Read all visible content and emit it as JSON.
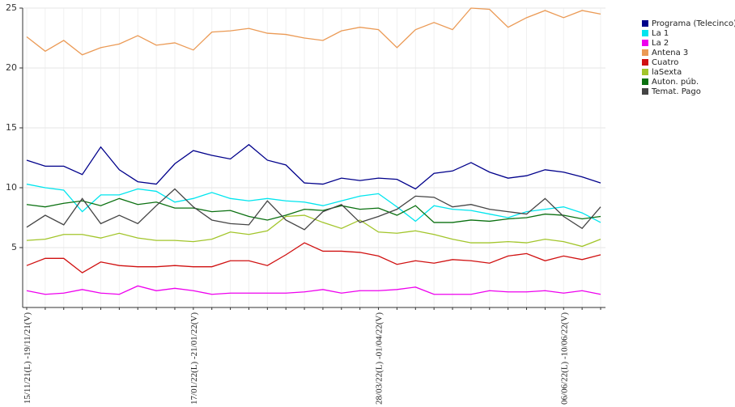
{
  "chart_data": {
    "type": "line",
    "categories": [
      "15/11/21(L) -19/11/21(V)",
      null,
      null,
      null,
      null,
      null,
      null,
      null,
      null,
      "17/01/22(L) -21/01/22(V)",
      null,
      null,
      null,
      null,
      null,
      null,
      null,
      null,
      null,
      "28/03/22(L) -01/04/22(V)",
      null,
      null,
      null,
      null,
      null,
      null,
      null,
      null,
      null,
      "06/06/22(L) -10/06/22(V)",
      null,
      null
    ],
    "ylim": [
      0,
      25
    ],
    "yticks": [
      5,
      10,
      15,
      20,
      25
    ],
    "grid": true,
    "series": [
      {
        "name": "Programa (Telecinco)",
        "color": "#00008b",
        "values": [
          12.3,
          11.8,
          11.8,
          11.1,
          13.4,
          11.5,
          10.5,
          10.3,
          12.0,
          13.1,
          12.7,
          12.4,
          13.6,
          12.3,
          11.9,
          10.4,
          10.3,
          10.8,
          10.6,
          10.8,
          10.7,
          9.9,
          11.2,
          11.4,
          12.1,
          11.3,
          10.8,
          11.0,
          11.5,
          11.3,
          10.9,
          10.4
        ]
      },
      {
        "name": "La 1",
        "color": "#00e5ee",
        "values": [
          10.3,
          10.0,
          9.8,
          8.0,
          9.4,
          9.4,
          9.9,
          9.7,
          8.8,
          9.1,
          9.6,
          9.1,
          8.9,
          9.1,
          8.9,
          8.8,
          8.5,
          8.9,
          9.3,
          9.5,
          8.4,
          7.2,
          8.5,
          8.2,
          8.1,
          7.8,
          7.5,
          8.0,
          8.2,
          8.4,
          7.9,
          7.1
        ]
      },
      {
        "name": "La 2",
        "color": "#ee00ee",
        "values": [
          1.4,
          1.1,
          1.2,
          1.5,
          1.2,
          1.1,
          1.8,
          1.4,
          1.6,
          1.4,
          1.1,
          1.2,
          1.2,
          1.2,
          1.2,
          1.3,
          1.5,
          1.2,
          1.4,
          1.4,
          1.5,
          1.7,
          1.1,
          1.1,
          1.1,
          1.4,
          1.3,
          1.3,
          1.4,
          1.2,
          1.4,
          1.1
        ]
      },
      {
        "name": "Antena 3",
        "color": "#eb9a55",
        "values": [
          22.6,
          21.4,
          22.3,
          21.1,
          21.7,
          22.0,
          22.7,
          21.9,
          22.1,
          21.5,
          23.0,
          23.1,
          23.3,
          22.9,
          22.8,
          22.5,
          22.3,
          23.1,
          23.4,
          23.2,
          21.7,
          23.2,
          23.8,
          23.2,
          25.0,
          24.9,
          23.4,
          24.2,
          24.8,
          24.2,
          24.8,
          24.5
        ]
      },
      {
        "name": "Cuatro",
        "color": "#d01010",
        "values": [
          3.5,
          4.1,
          4.1,
          2.9,
          3.8,
          3.5,
          3.4,
          3.4,
          3.5,
          3.4,
          3.4,
          3.9,
          3.9,
          3.5,
          4.4,
          5.4,
          4.7,
          4.7,
          4.6,
          4.3,
          3.6,
          3.9,
          3.7,
          4.0,
          3.9,
          3.7,
          4.3,
          4.5,
          3.9,
          4.3,
          4.0,
          4.4
        ]
      },
      {
        "name": "laSexta",
        "color": "#a2c52a",
        "values": [
          5.6,
          5.7,
          6.1,
          6.1,
          5.8,
          6.2,
          5.8,
          5.6,
          5.6,
          5.5,
          5.7,
          6.3,
          6.1,
          6.4,
          7.6,
          7.7,
          7.1,
          6.6,
          7.3,
          6.3,
          6.2,
          6.4,
          6.1,
          5.7,
          5.4,
          5.4,
          5.5,
          5.4,
          5.7,
          5.5,
          5.1,
          5.7
        ]
      },
      {
        "name": "Auton. púb.",
        "color": "#0a7010",
        "values": [
          8.6,
          8.4,
          8.7,
          8.9,
          8.5,
          9.1,
          8.6,
          8.8,
          8.3,
          8.3,
          8.0,
          8.1,
          7.6,
          7.3,
          7.7,
          8.2,
          8.1,
          8.5,
          8.2,
          8.3,
          7.7,
          8.5,
          7.1,
          7.1,
          7.3,
          7.2,
          7.4,
          7.5,
          7.8,
          7.7,
          7.4,
          7.6
        ]
      },
      {
        "name": "Temat. Pago",
        "color": "#444444",
        "values": [
          6.7,
          7.7,
          6.9,
          9.1,
          7.0,
          7.7,
          7.0,
          8.5,
          9.9,
          8.4,
          7.3,
          7.0,
          6.9,
          8.9,
          7.3,
          6.5,
          8.0,
          8.6,
          7.1,
          7.6,
          8.2,
          9.3,
          9.2,
          8.4,
          8.6,
          8.2,
          8.0,
          7.8,
          9.1,
          7.6,
          6.6,
          8.4
        ]
      }
    ]
  }
}
